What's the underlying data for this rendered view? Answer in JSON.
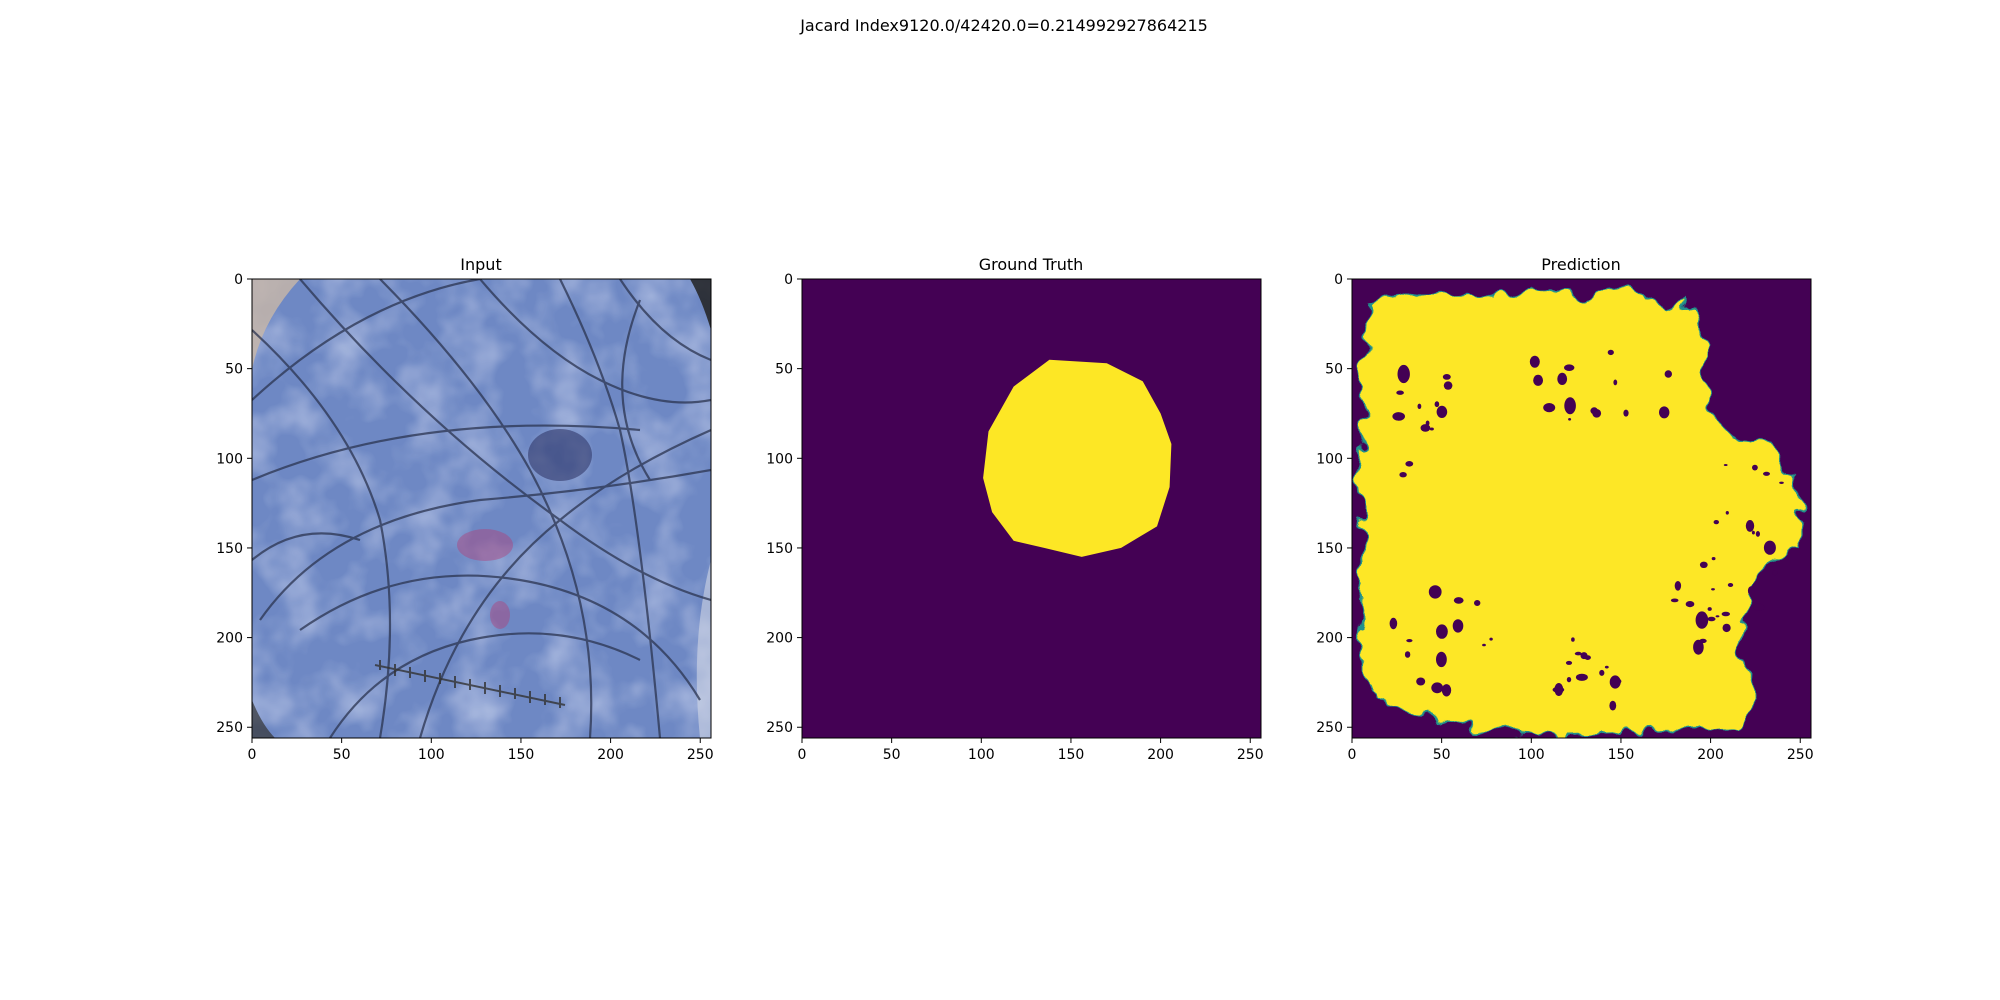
{
  "figure": {
    "suptitle": "Jacard Index9120.0/42420.0=0.214992927864215"
  },
  "colors": {
    "background": "#440154",
    "foreground": "#fde725",
    "edge": "#21918c",
    "skin_base": "#6e88c4"
  },
  "chart_data": [
    {
      "type": "image",
      "title": "Input",
      "xlim": [
        0,
        256
      ],
      "ylim": [
        256,
        0
      ],
      "xticks": [
        0,
        50,
        100,
        150,
        200,
        250
      ],
      "yticks": [
        0,
        50,
        100,
        150,
        200,
        250
      ]
    },
    {
      "type": "heatmap",
      "title": "Ground Truth",
      "xlim": [
        0,
        256
      ],
      "ylim": [
        256,
        0
      ],
      "xticks": [
        0,
        50,
        100,
        150,
        200,
        250
      ],
      "yticks": [
        0,
        50,
        100,
        150,
        200,
        250
      ],
      "mask_polygon": [
        [
          138,
          45
        ],
        [
          170,
          47
        ],
        [
          190,
          57
        ],
        [
          200,
          75
        ],
        [
          206,
          92
        ],
        [
          205,
          116
        ],
        [
          198,
          138
        ],
        [
          178,
          150
        ],
        [
          156,
          155
        ],
        [
          135,
          150
        ],
        [
          118,
          146
        ],
        [
          106,
          130
        ],
        [
          101,
          111
        ],
        [
          104,
          85
        ],
        [
          118,
          60
        ]
      ]
    },
    {
      "type": "heatmap",
      "title": "Prediction",
      "xlim": [
        0,
        256
      ],
      "ylim": [
        256,
        0
      ],
      "xticks": [
        0,
        50,
        100,
        150,
        200,
        250
      ],
      "yticks": [
        0,
        50,
        100,
        150,
        200,
        250
      ],
      "mask_polygon": [
        [
          10,
          15
        ],
        [
          30,
          12
        ],
        [
          55,
          8
        ],
        [
          80,
          12
        ],
        [
          100,
          5
        ],
        [
          130,
          10
        ],
        [
          150,
          4
        ],
        [
          175,
          18
        ],
        [
          185,
          10
        ],
        [
          197,
          38
        ],
        [
          194,
          60
        ],
        [
          212,
          88
        ],
        [
          230,
          90
        ],
        [
          246,
          110
        ],
        [
          253,
          150
        ],
        [
          234,
          158
        ],
        [
          222,
          172
        ],
        [
          218,
          205
        ],
        [
          225,
          232
        ],
        [
          214,
          250
        ],
        [
          175,
          252
        ],
        [
          110,
          254
        ],
        [
          60,
          250
        ],
        [
          32,
          240
        ],
        [
          10,
          230
        ],
        [
          3,
          200
        ],
        [
          6,
          160
        ],
        [
          3,
          110
        ],
        [
          6,
          60
        ]
      ]
    }
  ]
}
